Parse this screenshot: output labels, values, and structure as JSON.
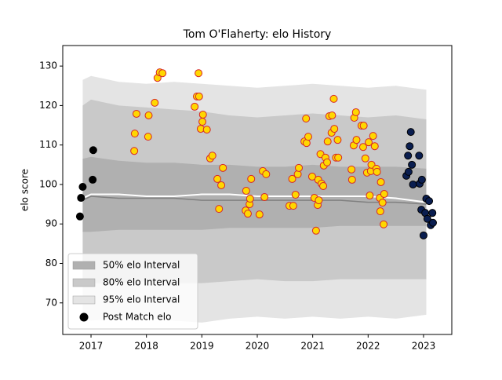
{
  "chart_data": {
    "type": "scatter",
    "title": "Tom O'Flaherty: elo History",
    "ylabel": "elo score",
    "xlim": [
      2016.49,
      2023.51
    ],
    "ylim": [
      62,
      135.2
    ],
    "xticks": [
      2017,
      2018,
      2019,
      2020,
      2021,
      2022,
      2023
    ],
    "yticks": [
      70,
      80,
      90,
      100,
      110,
      120,
      130
    ],
    "legend": "lower left",
    "interval_x": [
      2016.85,
      2017.0,
      2017.5,
      2018,
      2018.5,
      2019,
      2019.5,
      2020,
      2020.5,
      2021,
      2021.5,
      2022,
      2022.5,
      2023.05
    ],
    "bands": [
      {
        "name": "95% elo Interval",
        "color": "#e4e4e4",
        "upper": [
          126.5,
          127.5,
          126,
          125.5,
          126,
          125.5,
          125,
          124.5,
          125,
          125.5,
          125,
          124.5,
          125,
          124
        ],
        "lower": [
          66,
          65.5,
          66,
          66,
          65.5,
          65,
          66,
          66.5,
          66,
          66.5,
          66,
          66.5,
          66,
          67
        ]
      },
      {
        "name": "80% elo Interval",
        "color": "#c9c9c9",
        "upper": [
          120,
          121.5,
          120,
          119.5,
          119,
          118.5,
          117.5,
          117,
          117.5,
          118,
          117.5,
          117,
          117.5,
          116.5
        ],
        "lower": [
          75,
          75,
          75,
          75.5,
          75,
          75,
          75.5,
          76,
          75.5,
          75.5,
          76,
          76,
          76,
          76
        ]
      },
      {
        "name": "50% elo Interval",
        "color": "#b0b0b0",
        "upper": [
          106.5,
          107,
          106,
          105.5,
          105.5,
          105,
          105,
          104.5,
          104.5,
          105,
          104.5,
          104.5,
          104.5,
          104
        ],
        "lower": [
          88,
          88,
          88.5,
          88.5,
          88.5,
          88.5,
          89,
          89,
          89,
          89,
          89.5,
          89.5,
          89.5,
          89.5
        ]
      }
    ],
    "lines": [
      {
        "color": "#ffffff",
        "values": [
          96.5,
          97.5,
          97.5,
          97,
          97,
          97.5,
          97.5,
          97,
          97,
          97,
          97,
          97,
          96.5,
          95.5
        ]
      },
      {
        "color": "#808080",
        "values": [
          96,
          97,
          96.5,
          96.5,
          96.5,
          96,
          96,
          96,
          96,
          96,
          96,
          95.5,
          95.5,
          95
        ]
      }
    ],
    "series": [
      {
        "name": "Post Match elo",
        "color": "#000000",
        "edgecolor": "#000000",
        "x": [
          2016.8,
          2016.82,
          2016.85,
          2017.03,
          2017.04
        ],
        "values": [
          91.9,
          96.6,
          99.4,
          101.2,
          108.7
        ]
      },
      {
        "color": "#ffd700",
        "edgecolor": "#d62728",
        "x": [
          2017.78,
          2017.79,
          2017.82,
          2018.03,
          2018.04,
          2018.15,
          2018.2,
          2018.24,
          2018.29,
          2018.87,
          2018.91,
          2018.95,
          2018.94,
          2018.98,
          2019.01,
          2019.02,
          2019.09,
          2019.15,
          2019.19,
          2019.28,
          2019.31,
          2019.35,
          2019.38,
          2019.79,
          2019.8,
          2019.83,
          2019.86,
          2019.87,
          2019.89,
          2020.04,
          2020.1,
          2020.13,
          2020.16,
          2020.58,
          2020.63,
          2020.65,
          2020.69,
          2020.73,
          2020.75,
          2020.85,
          2020.88,
          2020.89,
          2020.92,
          2020.99,
          2021.03,
          2021.06,
          2021.09,
          2021.1,
          2021.11,
          2021.14,
          2021.16,
          2021.19,
          2021.2,
          2021.23,
          2021.26,
          2021.27,
          2021.3,
          2021.34,
          2021.35,
          2021.38,
          2021.39,
          2021.42,
          2021.45,
          2021.46,
          2021.7,
          2021.71,
          2021.74,
          2021.75,
          2021.78,
          2021.79,
          2021.88,
          2021.91,
          2021.92,
          2021.95,
          2021.98,
          2022.01,
          2022.03,
          2022.05,
          2022.06,
          2022.09,
          2022.12,
          2022.15,
          2022.16,
          2022.21,
          2022.22,
          2022.23,
          2022.26,
          2022.28,
          2022.29
        ],
        "values": [
          108.5,
          112.9,
          117.9,
          112.1,
          117.5,
          120.7,
          127.0,
          128.4,
          128.2,
          119.7,
          122.3,
          122.3,
          128.2,
          114.1,
          115.9,
          117.7,
          113.9,
          106.6,
          107.3,
          101.4,
          93.8,
          99.8,
          104.2,
          93.4,
          98.4,
          92.6,
          95.0,
          96.4,
          101.4,
          92.4,
          103.4,
          96.8,
          102.6,
          94.6,
          101.4,
          94.6,
          97.4,
          102.6,
          104.2,
          110.9,
          116.7,
          110.5,
          112.1,
          102.0,
          96.6,
          88.3,
          94.8,
          101.2,
          96.0,
          107.7,
          100.2,
          99.6,
          104.8,
          106.8,
          105.6,
          110.9,
          117.3,
          113.1,
          117.5,
          121.7,
          114.1,
          106.8,
          111.3,
          106.8,
          103.8,
          101.2,
          109.9,
          116.9,
          118.3,
          111.3,
          114.9,
          109.5,
          114.9,
          106.6,
          103.0,
          110.7,
          97.2,
          103.4,
          105.0,
          112.3,
          109.7,
          104.0,
          103.2,
          96.6,
          93.2,
          100.6,
          95.4,
          89.9,
          97.6
        ]
      },
      {
        "color": "#0a1e50",
        "edgecolor": "#000000",
        "x": [
          2022.69,
          2022.72,
          2022.73,
          2022.75,
          2022.77,
          2022.79,
          2022.81,
          2022.92,
          2022.93,
          2022.97,
          2022.96,
          2023.0,
          2023.03,
          2023.05,
          2023.07,
          2023.1,
          2023.13,
          2023.16,
          2023.17
        ],
        "values": [
          102.2,
          107.3,
          103.2,
          109.7,
          113.3,
          105.0,
          100.0,
          107.3,
          100.2,
          101.2,
          93.6,
          87.1,
          92.8,
          96.4,
          91.3,
          95.8,
          89.7,
          92.8,
          90.3
        ]
      }
    ]
  }
}
